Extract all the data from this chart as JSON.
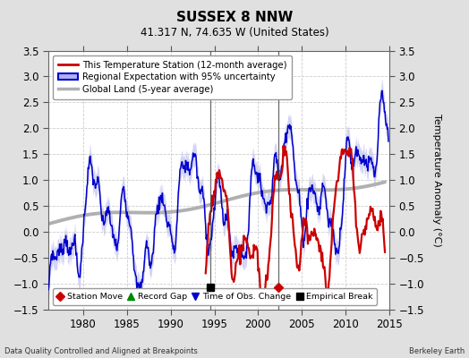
{
  "title": "SUSSEX 8 NNW",
  "subtitle": "41.317 N, 74.635 W (United States)",
  "ylabel": "Temperature Anomaly (°C)",
  "xlim": [
    1976,
    2015
  ],
  "ylim": [
    -1.5,
    3.5
  ],
  "yticks": [
    -1.5,
    -1.0,
    -0.5,
    0.0,
    0.5,
    1.0,
    1.5,
    2.0,
    2.5,
    3.0,
    3.5
  ],
  "xticks": [
    1980,
    1985,
    1990,
    1995,
    2000,
    2005,
    2010,
    2015
  ],
  "footer_left": "Data Quality Controlled and Aligned at Breakpoints",
  "footer_right": "Berkeley Earth",
  "fig_bg_color": "#e0e0e0",
  "plot_bg_color": "#ffffff",
  "station_color": "#cc0000",
  "regional_color": "#0000cc",
  "regional_fill_color": "#b0b0ee",
  "global_color": "#b0b0b0",
  "empirical_break_x": 1994.5,
  "station_move_x": 2002.3,
  "vline1_x": 1994.5,
  "vline2_x": 2002.3,
  "legend_entries": [
    "This Temperature Station (12-month average)",
    "Regional Expectation with 95% uncertainty",
    "Global Land (5-year average)"
  ],
  "marker_legend": [
    "Station Move",
    "Record Gap",
    "Time of Obs. Change",
    "Empirical Break"
  ]
}
